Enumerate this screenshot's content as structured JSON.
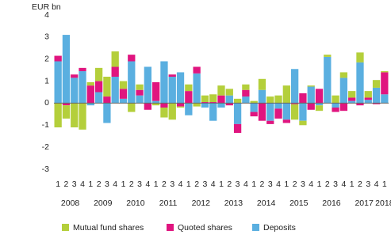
{
  "chart_data": {
    "type": "stacked_bar",
    "y_label": "EUR bn",
    "categories": [
      "1",
      "2",
      "3",
      "4",
      "1",
      "2",
      "3",
      "4",
      "1",
      "2",
      "3",
      "4",
      "1",
      "2",
      "3",
      "4",
      "1",
      "2",
      "3",
      "4",
      "1",
      "2",
      "3",
      "4",
      "1",
      "2",
      "3",
      "4",
      "1",
      "2",
      "3",
      "4",
      "1",
      "2",
      "3",
      "4",
      "1",
      "2",
      "3",
      "4",
      "1"
    ],
    "year_labels": [
      "2008",
      "2009",
      "2010",
      "2011",
      "2012",
      "2013",
      "2014",
      "2015",
      "2016",
      "2017",
      "2018"
    ],
    "ylim": [
      -3,
      4
    ],
    "yticks": [
      -3,
      -2,
      -1,
      0,
      1,
      2,
      3,
      4
    ],
    "grid": false,
    "legend": "bottom",
    "series": [
      {
        "name": "Mutual fund shares",
        "color": "#b4cf3b",
        "values": [
          -1.1,
          -0.6,
          -1.1,
          -1.2,
          0.15,
          0.6,
          0.9,
          0.7,
          0.35,
          -0.4,
          0.25,
          0,
          -0.1,
          -0.45,
          -0.75,
          -0.05,
          0.3,
          -0.15,
          0.3,
          0.35,
          0.45,
          0.3,
          0.2,
          0.25,
          0.1,
          0.5,
          0.3,
          0.35,
          0.8,
          -0.7,
          -0.2,
          0.05,
          -0.25,
          0.1,
          0.35,
          0.25,
          0.3,
          0.45,
          0.3,
          0.35,
          0.05
        ]
      },
      {
        "name": "Quoted shares",
        "color": "#e0157f",
        "values": [
          0.25,
          -0.1,
          0.15,
          0.15,
          0.8,
          0.5,
          0.3,
          0.45,
          0.45,
          0.3,
          0.25,
          -0.3,
          0.85,
          -0.2,
          0.1,
          -0.15,
          0.55,
          0.3,
          0.05,
          0.05,
          0.35,
          -0.1,
          -0.4,
          0.3,
          -0.2,
          -0.8,
          -0.15,
          -0.45,
          -0.15,
          -0.05,
          0.45,
          -0.3,
          0.65,
          0,
          -0.2,
          -0.35,
          0.15,
          -0.1,
          0.1,
          -0.05,
          1.0
        ]
      },
      {
        "name": "Deposits",
        "color": "#5aafe0",
        "values": [
          1.9,
          3.1,
          1.15,
          1.45,
          -0.1,
          0.5,
          -0.9,
          1.2,
          0.2,
          1.9,
          0.35,
          1.65,
          0.1,
          1.9,
          1.2,
          1.4,
          -0.55,
          1.35,
          -0.2,
          -0.8,
          -0.2,
          0.35,
          -0.95,
          0.3,
          -0.4,
          0.6,
          -0.8,
          -0.25,
          -0.75,
          1.55,
          -0.8,
          0.75,
          -0.1,
          2.1,
          -0.2,
          1.15,
          0.1,
          1.85,
          0.15,
          0.7,
          0.4
        ]
      }
    ]
  }
}
